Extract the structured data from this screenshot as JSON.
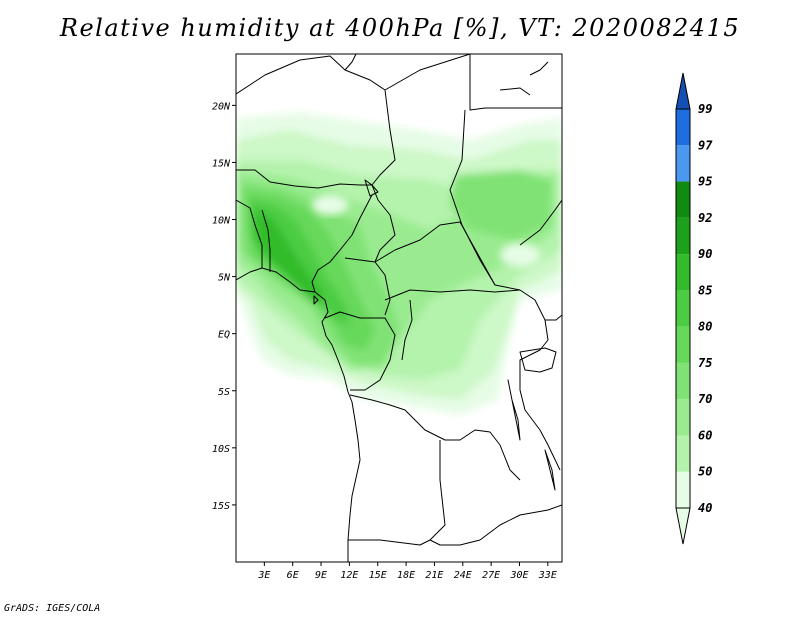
{
  "title": "Relative humidity at 400hPa [%], VT: 2020082415",
  "credit": "GrADS: IGES/COLA",
  "map": {
    "lat_labels": [
      {
        "lat": 20,
        "label": "20N"
      },
      {
        "lat": 15,
        "label": "15N"
      },
      {
        "lat": 10,
        "label": "10N"
      },
      {
        "lat": 5,
        "label": "5N"
      },
      {
        "lat": 0,
        "label": "EQ"
      },
      {
        "lat": -5,
        "label": "5S"
      },
      {
        "lat": -10,
        "label": "10S"
      },
      {
        "lat": -15,
        "label": "15S"
      }
    ],
    "lon_labels": [
      {
        "lon": 3,
        "label": "3E"
      },
      {
        "lon": 6,
        "label": "6E"
      },
      {
        "lon": 9,
        "label": "9E"
      },
      {
        "lon": 12,
        "label": "12E"
      },
      {
        "lon": 15,
        "label": "15E"
      },
      {
        "lon": 18,
        "label": "18E"
      },
      {
        "lon": 21,
        "label": "21E"
      },
      {
        "lon": 24,
        "label": "24E"
      },
      {
        "lon": 27,
        "label": "27E"
      },
      {
        "lon": 30,
        "label": "30E"
      },
      {
        "lon": 33,
        "label": "33E"
      }
    ],
    "lon_range": [
      0,
      34.5
    ],
    "lat_range": [
      -20,
      24.5
    ]
  },
  "colorbar": {
    "levels": [
      "40",
      "50",
      "60",
      "70",
      "75",
      "80",
      "85",
      "90",
      "92",
      "95",
      "97",
      "99"
    ],
    "colors": [
      "#e6fce6",
      "#cdf8c8",
      "#b4f3ac",
      "#9aeb90",
      "#80e274",
      "#66d85a",
      "#4ccc42",
      "#32bc2c",
      "#1ea01c",
      "#108a10",
      "#4a98f0",
      "#1f6ee0",
      "#1450b4"
    ],
    "under_color": "#ffffff",
    "over_color": "#1450b4"
  },
  "colors": {
    "land_dry": "#ffffff",
    "boundary": "#000000"
  }
}
